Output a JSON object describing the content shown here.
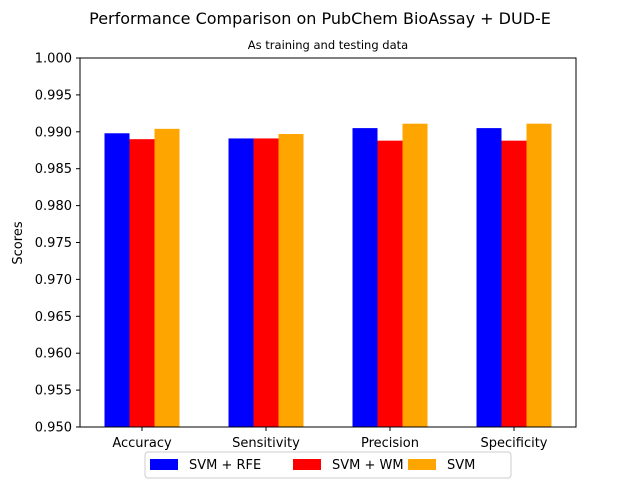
{
  "chart_data": {
    "type": "bar",
    "title": "Performance Comparison on PubChem BioAssay + DUD-E",
    "subtitle": "As training and testing data",
    "xlabel": "",
    "ylabel": "Scores",
    "categories": [
      "Accuracy",
      "Sensitivity",
      "Precision",
      "Specificity"
    ],
    "series": [
      {
        "name": "SVM + RFE",
        "color": "#0000ff",
        "values": [
          0.9898,
          0.9891,
          0.9905,
          0.9905
        ]
      },
      {
        "name": "SVM + WM",
        "color": "#ff0000",
        "values": [
          0.989,
          0.9891,
          0.9888,
          0.9888
        ]
      },
      {
        "name": "SVM",
        "color": "#ffa500",
        "values": [
          0.9904,
          0.9897,
          0.9911,
          0.9911
        ]
      }
    ],
    "ylim": [
      0.95,
      1.0
    ],
    "yticks": [
      "0.950",
      "0.955",
      "0.960",
      "0.965",
      "0.970",
      "0.975",
      "0.980",
      "0.985",
      "0.990",
      "0.995",
      "1.000"
    ],
    "grid": false,
    "legend_position": "bottom-center"
  }
}
